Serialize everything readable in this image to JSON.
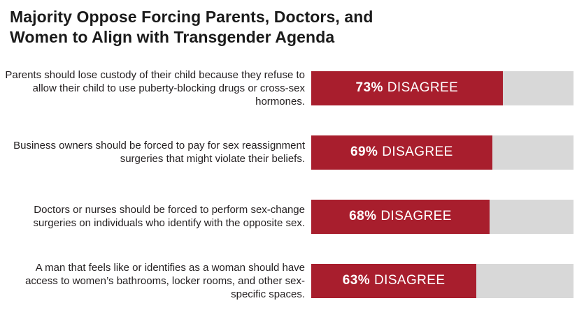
{
  "title": {
    "line1": "Majority Oppose Forcing Parents, Doctors, and",
    "line2": "Women to Align with Transgender Agenda"
  },
  "colors": {
    "bar_fill": "#A81E2D",
    "bar_track": "#D8D8D8",
    "title_text": "#1A1A1A",
    "label_text": "#231F20",
    "bar_label_text": "#FFFFFF"
  },
  "chart_data": {
    "type": "bar",
    "orientation": "horizontal",
    "title": "Majority Oppose Forcing Parents, Doctors, and Women to Align with Transgender Agenda",
    "xlim": [
      0,
      100
    ],
    "unit": "%",
    "grid": false,
    "legend": "none",
    "categories": [
      "Parents should lose custody of their child because they refuse to allow their child to use puberty-blocking drugs or cross-sex hormones.",
      "Business owners should be forced to pay for sex reassignment surgeries that might violate their beliefs.",
      "Doctors or nurses should be forced to perform sex-change surgeries on individuals who identify with the opposite sex.",
      "A man that feels like or identifies as a woman should have access to women’s bathrooms, locker rooms, and other sex-specific spaces."
    ],
    "values": [
      73,
      69,
      68,
      63
    ],
    "bar_labels": [
      {
        "percent": "73%",
        "word": "DISAGREE"
      },
      {
        "percent": "69%",
        "word": "DISAGREE"
      },
      {
        "percent": "68%",
        "word": "DISAGREE"
      },
      {
        "percent": "63%",
        "word": "DISAGREE"
      }
    ]
  }
}
